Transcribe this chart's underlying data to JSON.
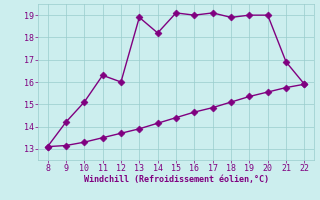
{
  "xlabel": "Windchill (Refroidissement éolien,°C)",
  "x_upper": [
    8,
    9,
    10,
    11,
    12,
    13,
    14,
    15,
    16,
    17,
    18,
    19,
    20,
    21,
    22
  ],
  "y_upper": [
    13.1,
    14.2,
    15.1,
    16.3,
    16.0,
    18.9,
    18.2,
    19.1,
    19.0,
    19.1,
    18.9,
    19.0,
    19.0,
    16.9,
    15.9
  ],
  "x_lower": [
    8,
    9,
    10,
    11,
    12,
    13,
    14,
    15,
    16,
    17,
    18,
    19,
    20,
    21,
    22
  ],
  "y_lower": [
    13.1,
    13.15,
    13.3,
    13.5,
    13.7,
    13.9,
    14.15,
    14.4,
    14.65,
    14.85,
    15.1,
    15.35,
    15.55,
    15.75,
    15.9
  ],
  "line_color": "#800080",
  "bg_color": "#cceeee",
  "grid_color": "#99cccc",
  "xlim": [
    7.5,
    22.5
  ],
  "ylim": [
    12.5,
    19.5
  ],
  "xticks": [
    8,
    9,
    10,
    11,
    12,
    13,
    14,
    15,
    16,
    17,
    18,
    19,
    20,
    21,
    22
  ],
  "yticks": [
    13,
    14,
    15,
    16,
    17,
    18,
    19
  ],
  "xlabel_color": "#800080",
  "tick_color": "#800080",
  "markersize": 3.5,
  "linewidth": 1.0
}
